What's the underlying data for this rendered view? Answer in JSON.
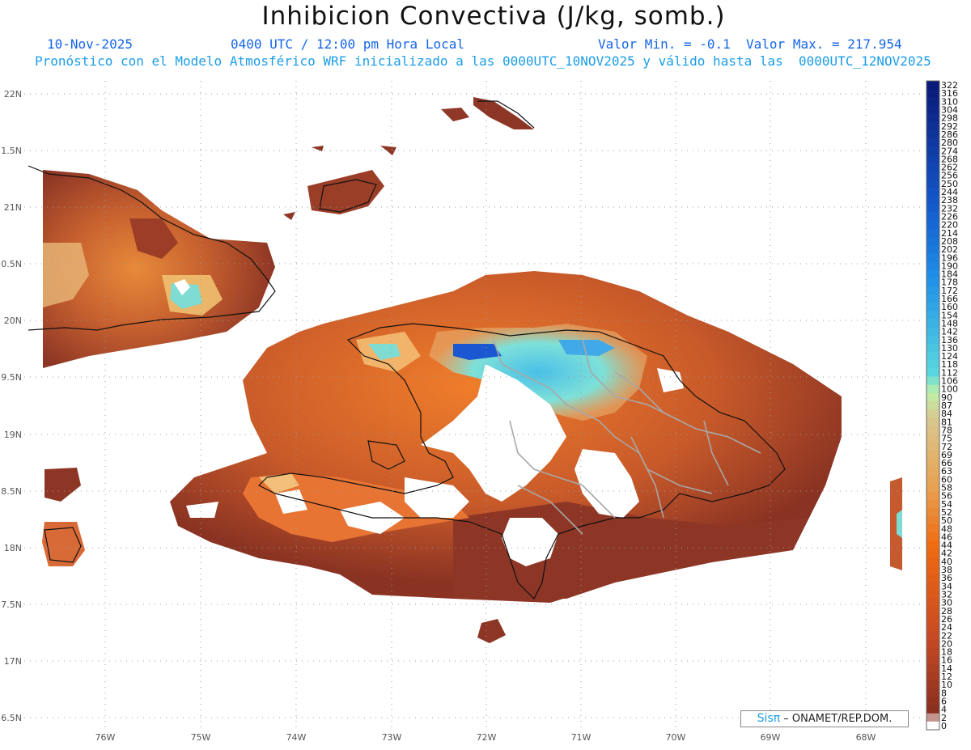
{
  "header": {
    "title": "Inhibicion Convectiva (J/kg, somb.)",
    "date": "10-Nov-2025",
    "time": "0400 UTC / 12:00 pm Hora Local",
    "minmax": "Valor Min. = -0.1  Valor Max. = 217.954",
    "model_info": "Pronóstico con el Modelo Atmosférico WRF inicializado a las 0000UTC_10NOV2025 y válido hasta las  0000UTC_12NOV2025"
  },
  "axes": {
    "lat_labels": [
      "22N",
      "1.5N",
      "21N",
      "0.5N",
      "20N",
      "9.5N",
      "19N",
      "8.5N",
      "18N",
      "7.5N",
      "17N",
      "6.5N"
    ],
    "lon_labels": [
      "76W",
      "75W",
      "74W",
      "73W",
      "72W",
      "71W",
      "70W",
      "69W",
      "68W"
    ]
  },
  "colorbar": {
    "labels": [
      "322",
      "316",
      "310",
      "304",
      "298",
      "292",
      "286",
      "280",
      "274",
      "268",
      "262",
      "256",
      "250",
      "244",
      "238",
      "232",
      "226",
      "220",
      "214",
      "208",
      "202",
      "196",
      "190",
      "184",
      "178",
      "172",
      "166",
      "160",
      "154",
      "148",
      "142",
      "136",
      "130",
      "124",
      "118",
      "112",
      "106",
      "100",
      "90",
      "87",
      "84",
      "81",
      "78",
      "75",
      "72",
      "69",
      "66",
      "63",
      "60",
      "58",
      "56",
      "54",
      "52",
      "50",
      "48",
      "46",
      "44",
      "42",
      "40",
      "38",
      "36",
      "34",
      "32",
      "30",
      "28",
      "26",
      "24",
      "22",
      "20",
      "18",
      "16",
      "14",
      "12",
      "10",
      "8",
      "6",
      "4",
      "2",
      "0"
    ],
    "colors": {
      "top": "#0a1a78",
      "mid_blue": "#1e8fe8",
      "cyan": "#58d8e0",
      "green": "#c8f0a0",
      "tan": "#d8b870",
      "orange": "#f06a10",
      "brown": "#8b3020"
    }
  },
  "credit": {
    "brand": "Sisπ",
    "text": " – ONAMET/REP.DOM."
  }
}
